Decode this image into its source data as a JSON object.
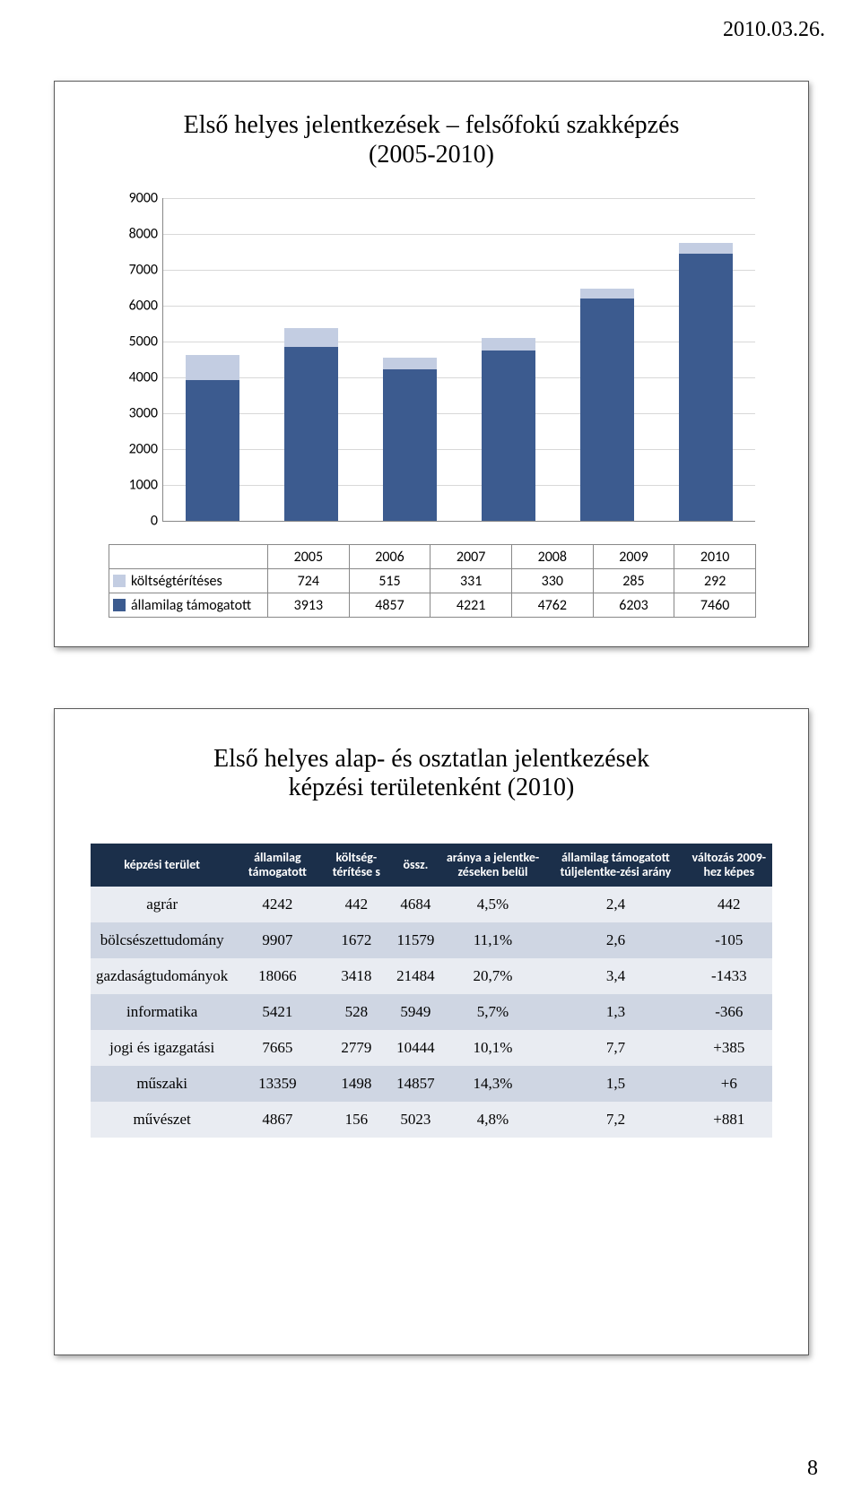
{
  "meta": {
    "header_date": "2010.03.26.",
    "page_number": "8"
  },
  "chart_panel": {
    "title_line1": "Első helyes jelentkezések – felsőfokú szakképzés",
    "title_line2": "(2005-2010)",
    "chart": {
      "type": "bar",
      "categories": [
        "2005",
        "2006",
        "2007",
        "2008",
        "2009",
        "2010"
      ],
      "ylim": [
        0,
        9000
      ],
      "ytick_step": 1000,
      "yticks": [
        "0",
        "1000",
        "2000",
        "3000",
        "4000",
        "5000",
        "6000",
        "7000",
        "8000",
        "9000"
      ],
      "series": [
        {
          "name": "költségtérítéses",
          "color": "#c3cde2",
          "values": [
            724,
            515,
            331,
            330,
            285,
            292
          ]
        },
        {
          "name": "államilag támogatott",
          "color": "#3c5b8f",
          "values": [
            3913,
            4857,
            4221,
            4762,
            6203,
            7460
          ]
        }
      ],
      "grid_color": "#d8d8d8",
      "background_color": "#ffffff",
      "bar_width": 0.55,
      "font_family": "Calibri",
      "label_fontsize": 16
    }
  },
  "table_panel": {
    "title_line1": "Első helyes alap- és osztatlan jelentkezések",
    "title_line2": "képzési területenként (2010)",
    "columns": [
      "képzési terület",
      "államilag támogatott",
      "költség-térítése s",
      "össz.",
      "aránya a jelentke-zéseken belül",
      "államilag támogatott túljelentke-zési arány",
      "változás 2009-hez képes"
    ],
    "header_bg": "#1b2f4a",
    "header_fg": "#ffffff",
    "row_alt_bg": "#cfd6e3",
    "row_bg": "#e9ecf2",
    "rows": [
      [
        "agrár",
        "4242",
        "442",
        "4684",
        "4,5%",
        "2,4",
        "442"
      ],
      [
        "bölcsészettudomány",
        "9907",
        "1672",
        "11579",
        "11,1%",
        "2,6",
        "-105"
      ],
      [
        "gazdaságtudományok",
        "18066",
        "3418",
        "21484",
        "20,7%",
        "3,4",
        "-1433"
      ],
      [
        "informatika",
        "5421",
        "528",
        "5949",
        "5,7%",
        "1,3",
        "-366"
      ],
      [
        "jogi és igazgatási",
        "7665",
        "2779",
        "10444",
        "10,1%",
        "7,7",
        "+385"
      ],
      [
        "műszaki",
        "13359",
        "1498",
        "14857",
        "14,3%",
        "1,5",
        "+6"
      ],
      [
        "művészet",
        "4867",
        "156",
        "5023",
        "4,8%",
        "7,2",
        "+881"
      ]
    ]
  }
}
